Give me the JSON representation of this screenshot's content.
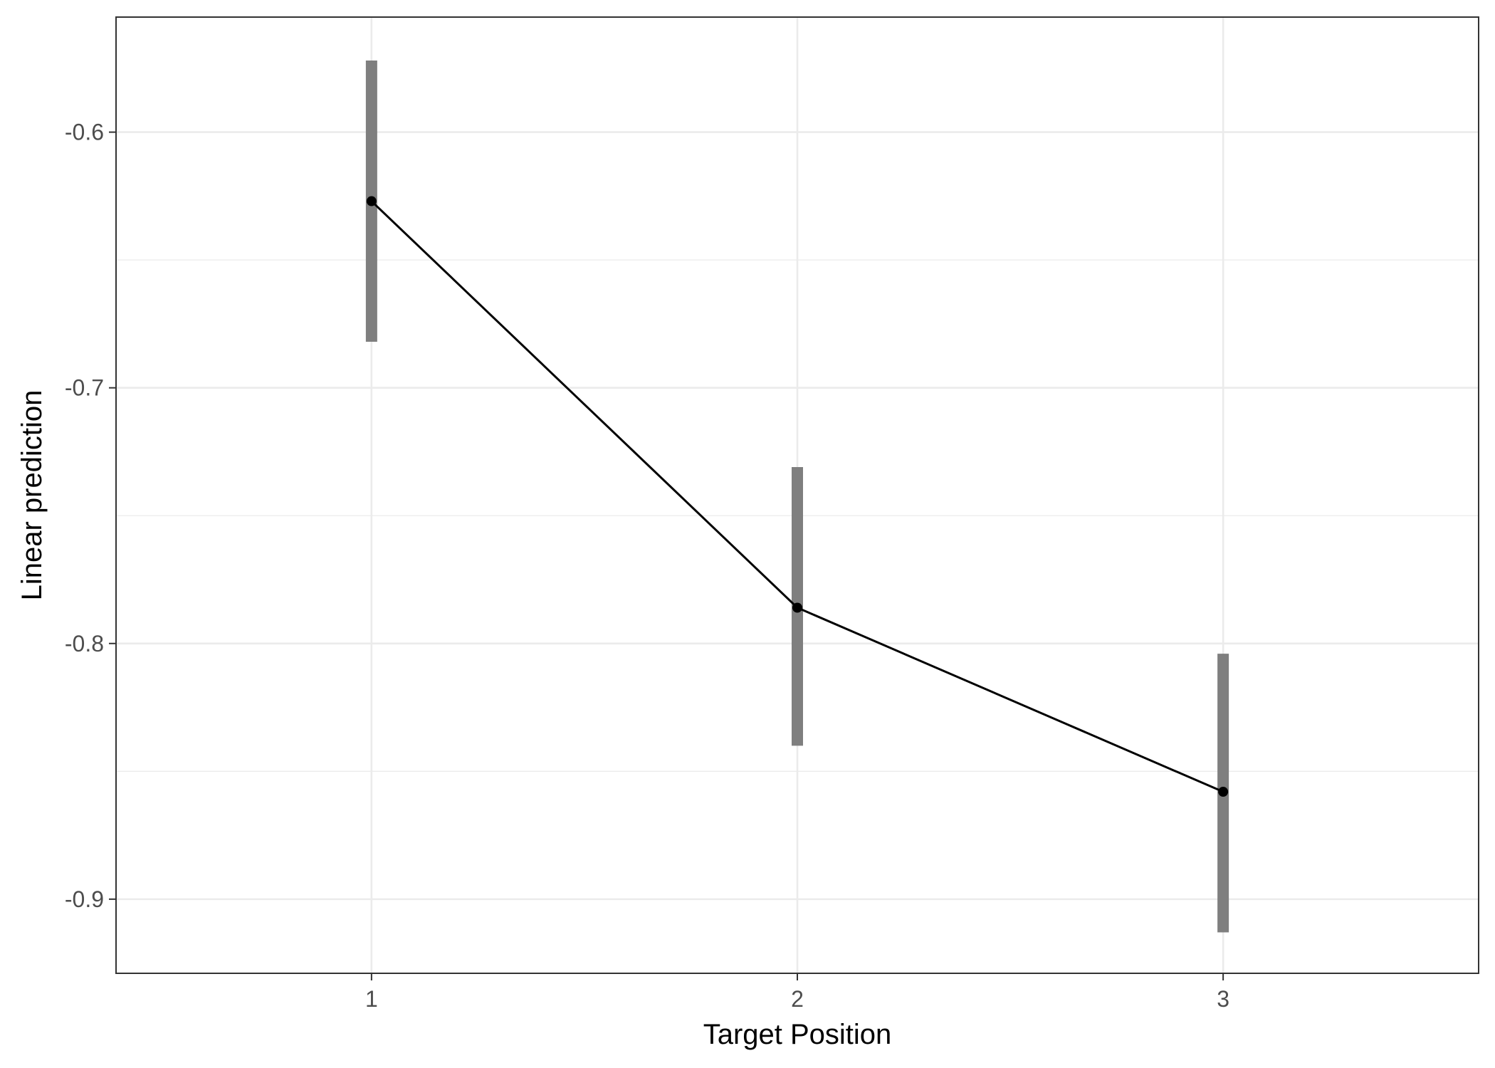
{
  "chart_data": {
    "type": "line",
    "title": "",
    "xlabel": "Target Position",
    "ylabel": "Linear prediction",
    "categories": [
      "1",
      "2",
      "3"
    ],
    "x": [
      1,
      2,
      3
    ],
    "series": [
      {
        "values": [
          -0.627,
          -0.786,
          -0.858
        ],
        "ci_low": [
          -0.682,
          -0.84,
          -0.913
        ],
        "ci_high": [
          -0.572,
          -0.731,
          -0.804
        ]
      }
    ],
    "xlim": [
      0.4,
      3.6
    ],
    "ylim": [
      -0.929,
      -0.555
    ],
    "yticks": [
      -0.9,
      -0.8,
      -0.7,
      -0.6
    ],
    "ytick_labels": [
      "-0.9",
      "-0.8",
      "-0.7",
      "-0.6"
    ],
    "grid": true,
    "legend": "none",
    "colors": {
      "line": "#000000",
      "point": "#000000",
      "errorbar": "#7f7f7f",
      "grid": "#ebebeb",
      "panel_border": "#333333"
    }
  }
}
